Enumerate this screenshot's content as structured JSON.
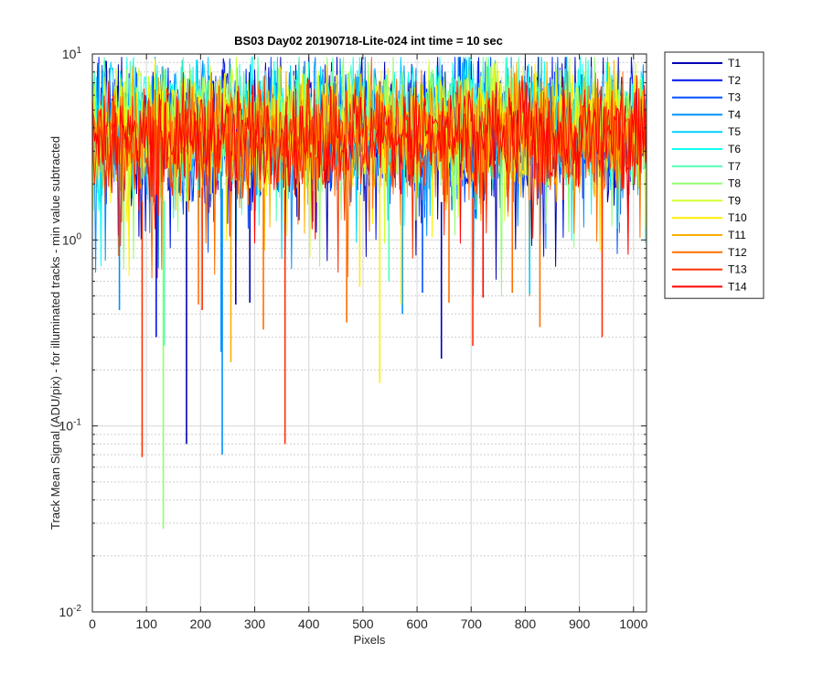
{
  "chart_data": {
    "type": "line",
    "title": "BS03 Day02 20190718-Lite-024 int time = 10 sec",
    "xlabel": "Pixels",
    "ylabel": "Track Mean Signal (ADU/pix) - for illuminated tracks - min value subtracted",
    "xlim": [
      0,
      1024
    ],
    "ylim": [
      0.01,
      10
    ],
    "yscale": "log",
    "grid": true,
    "legend_position": "outside-right-top",
    "x_ticks": [
      0,
      100,
      200,
      300,
      400,
      500,
      600,
      700,
      800,
      900,
      1000
    ],
    "x_tick_labels": [
      "0",
      "100",
      "200",
      "300",
      "400",
      "500",
      "600",
      "700",
      "800",
      "900",
      "1000"
    ],
    "y_ticks": [
      {
        "value": 0.01,
        "base": "10",
        "exp": "-2"
      },
      {
        "value": 0.1,
        "base": "10",
        "exp": "-1"
      },
      {
        "value": 1,
        "base": "10",
        "exp": "0"
      },
      {
        "value": 10,
        "base": "10",
        "exp": "1"
      }
    ],
    "series": [
      {
        "name": "T1",
        "color": "#0000b4",
        "center": 3.9,
        "spread": 0.34
      },
      {
        "name": "T2",
        "color": "#0010ee",
        "center": 3.9,
        "spread": 0.33
      },
      {
        "name": "T3",
        "color": "#0050ff",
        "center": 4.0,
        "spread": 0.32
      },
      {
        "name": "T4",
        "color": "#0090ff",
        "center": 4.2,
        "spread": 0.32
      },
      {
        "name": "T5",
        "color": "#00d0ff",
        "center": 4.4,
        "spread": 0.31
      },
      {
        "name": "T6",
        "color": "#10ffef",
        "center": 4.6,
        "spread": 0.3
      },
      {
        "name": "T7",
        "color": "#50ffaf",
        "center": 4.4,
        "spread": 0.3
      },
      {
        "name": "T8",
        "color": "#90ff6f",
        "center": 4.2,
        "spread": 0.3
      },
      {
        "name": "T9",
        "color": "#d0ff2f",
        "center": 4.3,
        "spread": 0.29
      },
      {
        "name": "T10",
        "color": "#ffef00",
        "center": 4.0,
        "spread": 0.29
      },
      {
        "name": "T11",
        "color": "#ffaf00",
        "center": 3.8,
        "spread": 0.28
      },
      {
        "name": "T12",
        "color": "#ff6f00",
        "center": 3.6,
        "spread": 0.28
      },
      {
        "name": "T13",
        "color": "#ff2f00",
        "center": 3.5,
        "spread": 0.27
      },
      {
        "name": "T14",
        "color": "#ff0000",
        "center": 3.7,
        "spread": 0.26
      }
    ],
    "dips": [
      {
        "series": "T13",
        "x": 92,
        "y": 0.068
      },
      {
        "series": "T8",
        "x": 131,
        "y": 0.028
      },
      {
        "series": "T7",
        "x": 133,
        "y": 0.27
      },
      {
        "series": "T1",
        "x": 174,
        "y": 0.08
      },
      {
        "series": "T4",
        "x": 240,
        "y": 0.07
      },
      {
        "series": "T4",
        "x": 238,
        "y": 0.25
      },
      {
        "series": "T13",
        "x": 356,
        "y": 0.08
      },
      {
        "series": "T10",
        "x": 531,
        "y": 0.17
      },
      {
        "series": "T1",
        "x": 645,
        "y": 0.23
      },
      {
        "series": "T13",
        "x": 703,
        "y": 0.27
      },
      {
        "series": "T13",
        "x": 942,
        "y": 0.3
      },
      {
        "series": "T12",
        "x": 827,
        "y": 0.34
      },
      {
        "series": "T2",
        "x": 118,
        "y": 0.3
      },
      {
        "series": "T12",
        "x": 316,
        "y": 0.33
      },
      {
        "series": "T12",
        "x": 470,
        "y": 0.36
      },
      {
        "series": "T4",
        "x": 573,
        "y": 0.4
      },
      {
        "series": "T12",
        "x": 776,
        "y": 0.52
      },
      {
        "series": "T5",
        "x": 808,
        "y": 0.51
      },
      {
        "series": "T4",
        "x": 50,
        "y": 0.42
      },
      {
        "series": "T12",
        "x": 196,
        "y": 0.45
      },
      {
        "series": "T13",
        "x": 203,
        "y": 0.42
      },
      {
        "series": "T11",
        "x": 256,
        "y": 0.22
      },
      {
        "series": "T10",
        "x": 494,
        "y": 0.56
      },
      {
        "series": "T7",
        "x": 548,
        "y": 0.6
      },
      {
        "series": "T10",
        "x": 571,
        "y": 0.45
      },
      {
        "series": "T12",
        "x": 659,
        "y": 0.46
      },
      {
        "series": "T1",
        "x": 265,
        "y": 0.45
      },
      {
        "series": "T1",
        "x": 291,
        "y": 0.46
      },
      {
        "series": "T3",
        "x": 610,
        "y": 0.52
      },
      {
        "series": "T14",
        "x": 722,
        "y": 0.49
      }
    ]
  }
}
